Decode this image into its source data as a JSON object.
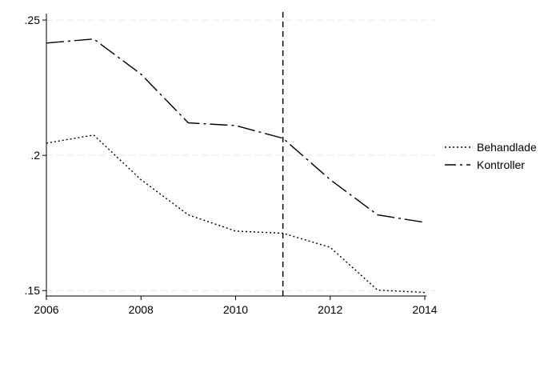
{
  "chart_data": {
    "type": "line",
    "x": [
      2006,
      2007,
      2008,
      2009,
      2010,
      2011,
      2012,
      2013,
      2014
    ],
    "series": [
      {
        "name": "Behandlade",
        "style": "dotted",
        "values": [
          0.2045,
          0.2075,
          0.191,
          0.178,
          0.172,
          0.1712,
          0.166,
          0.1502,
          0.1493
        ]
      },
      {
        "name": "Kontroller",
        "style": "long-dash",
        "values": [
          0.2415,
          0.243,
          0.23,
          0.212,
          0.211,
          0.2063,
          0.191,
          0.178,
          0.1752
        ]
      }
    ],
    "xlim": [
      2006,
      2014
    ],
    "ylim": [
      0.148,
      0.2515
    ],
    "xticks": [
      2006,
      2008,
      2010,
      2012,
      2014
    ],
    "xtick_labels": [
      "2006",
      "2008",
      "2010",
      "2012",
      "2014"
    ],
    "yticks": [
      0.15,
      0.2,
      0.25
    ],
    "ytick_labels": [
      ".15",
      ".2",
      ".25"
    ],
    "vline": 2011,
    "grid": true,
    "legend_position": "right",
    "title": "",
    "xlabel": "",
    "ylabel": "",
    "colors": {
      "line": "#000000",
      "grid": "#e6e6e6",
      "axis": "#000000"
    }
  }
}
